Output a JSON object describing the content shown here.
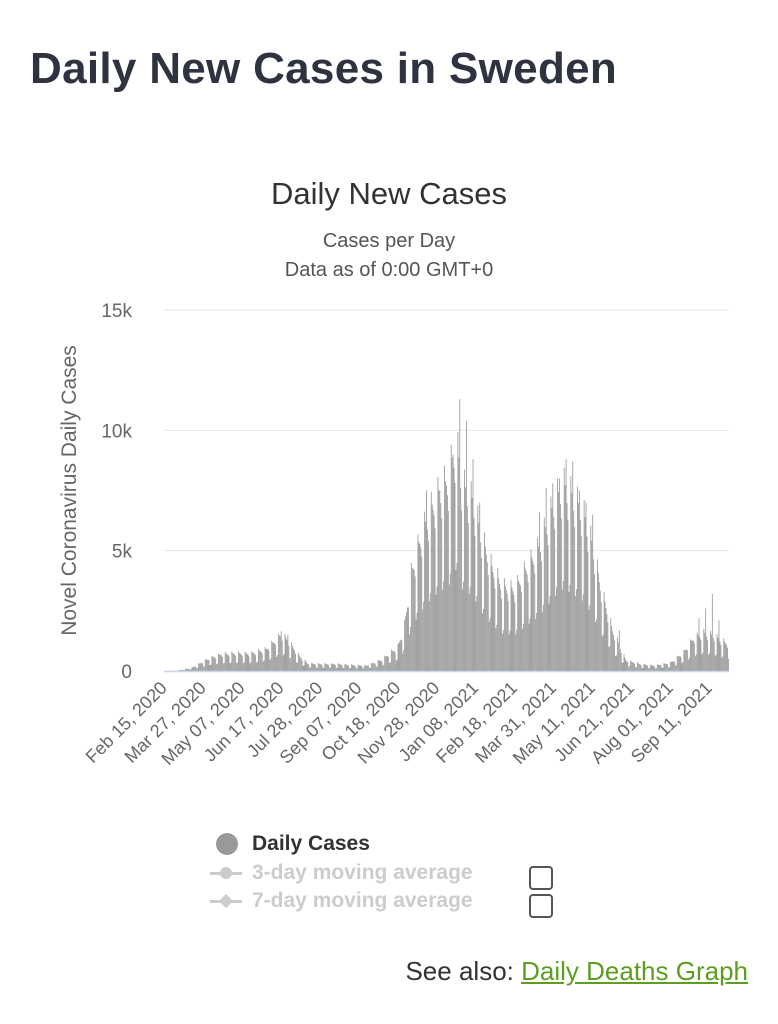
{
  "page": {
    "title": "Daily New Cases in Sweden"
  },
  "chart_data": {
    "type": "bar",
    "title": "Daily New Cases",
    "subtitle": [
      "Cases per Day",
      "Data as of 0:00 GMT+0"
    ],
    "ylabel": "Novel Coronavirus Daily Cases",
    "xlabel": "",
    "ylim": [
      0,
      15000
    ],
    "yticks": [
      0,
      5000,
      10000,
      15000
    ],
    "ytick_labels": [
      "0",
      "5k",
      "10k",
      "15k"
    ],
    "x_start_date": "2020-02-15",
    "x_end_date": "2021-10-01",
    "xtick_labels": [
      "Feb 15, 2020",
      "Mar 27, 2020",
      "May 07, 2020",
      "Jun 17, 2020",
      "Jul 28, 2020",
      "Sep 07, 2020",
      "Oct 18, 2020",
      "Nov 28, 2020",
      "Jan 08, 2021",
      "Feb 18, 2021",
      "Mar 31, 2021",
      "May 11, 2021",
      "Jun 21, 2021",
      "Aug 01, 2021",
      "Sep 11, 2021"
    ],
    "grid": true,
    "legend_position": "bottom",
    "series": [
      {
        "name": "Daily Cases",
        "color": "#999999",
        "daily_profile": [
          [
            "2020-02-15",
            0
          ],
          [
            "2020-03-01",
            20
          ],
          [
            "2020-03-15",
            120
          ],
          [
            "2020-04-01",
            450
          ],
          [
            "2020-04-15",
            620
          ],
          [
            "2020-05-01",
            660
          ],
          [
            "2020-05-15",
            640
          ],
          [
            "2020-06-01",
            800
          ],
          [
            "2020-06-10",
            1100
          ],
          [
            "2020-06-17",
            1350
          ],
          [
            "2020-06-24",
            1150
          ],
          [
            "2020-07-05",
            600
          ],
          [
            "2020-07-15",
            280
          ],
          [
            "2020-08-01",
            260
          ],
          [
            "2020-08-15",
            260
          ],
          [
            "2020-09-01",
            220
          ],
          [
            "2020-09-15",
            200
          ],
          [
            "2020-10-01",
            420
          ],
          [
            "2020-10-18",
            900
          ],
          [
            "2020-10-25",
            1700
          ],
          [
            "2020-11-01",
            3600
          ],
          [
            "2020-11-10",
            4800
          ],
          [
            "2020-11-20",
            5800
          ],
          [
            "2020-12-01",
            6600
          ],
          [
            "2020-12-10",
            7000
          ],
          [
            "2020-12-18",
            8400
          ],
          [
            "2020-12-25",
            6800
          ],
          [
            "2021-01-05",
            6200
          ],
          [
            "2021-01-15",
            4800
          ],
          [
            "2021-01-25",
            3800
          ],
          [
            "2021-02-05",
            3100
          ],
          [
            "2021-02-18",
            3000
          ],
          [
            "2021-03-01",
            3700
          ],
          [
            "2021-03-15",
            4500
          ],
          [
            "2021-04-01",
            6200
          ],
          [
            "2021-04-10",
            6800
          ],
          [
            "2021-04-20",
            6400
          ],
          [
            "2021-05-01",
            5800
          ],
          [
            "2021-05-11",
            4600
          ],
          [
            "2021-05-20",
            3000
          ],
          [
            "2021-06-01",
            1500
          ],
          [
            "2021-06-15",
            400
          ],
          [
            "2021-07-01",
            250
          ],
          [
            "2021-07-15",
            200
          ],
          [
            "2021-08-01",
            300
          ],
          [
            "2021-08-15",
            700
          ],
          [
            "2021-08-25",
            1200
          ],
          [
            "2021-09-05",
            1400
          ],
          [
            "2021-09-15",
            1300
          ],
          [
            "2021-09-25",
            1100
          ],
          [
            "2021-10-01",
            1000
          ]
        ],
        "peaks": [
          [
            "2020-06-17",
            1650
          ],
          [
            "2020-06-24",
            1500
          ],
          [
            "2020-11-17",
            7500
          ],
          [
            "2020-12-01",
            7500
          ],
          [
            "2020-12-08",
            7700
          ],
          [
            "2020-12-15",
            9000
          ],
          [
            "2020-12-22",
            11300
          ],
          [
            "2020-12-29",
            10400
          ],
          [
            "2021-01-05",
            8800
          ],
          [
            "2021-01-12",
            7000
          ],
          [
            "2021-03-16",
            6600
          ],
          [
            "2021-03-23",
            7600
          ],
          [
            "2021-03-30",
            7800
          ],
          [
            "2021-04-06",
            8000
          ],
          [
            "2021-04-13",
            8800
          ],
          [
            "2021-04-20",
            8700
          ],
          [
            "2021-04-27",
            7500
          ],
          [
            "2021-05-04",
            7000
          ],
          [
            "2021-05-11",
            6500
          ],
          [
            "2021-06-08",
            1700
          ],
          [
            "2021-08-31",
            2200
          ],
          [
            "2021-09-07",
            2600
          ],
          [
            "2021-09-14",
            3200
          ],
          [
            "2021-09-21",
            2100
          ]
        ]
      },
      {
        "name": "3-day moving average",
        "color": "#cccccc",
        "visible": false
      },
      {
        "name": "7-day moving average",
        "color": "#cccccc",
        "visible": false
      }
    ]
  },
  "legend": {
    "items": [
      {
        "label": "Daily Cases",
        "active": true
      },
      {
        "label": "3-day moving average",
        "active": false
      },
      {
        "label": "7-day moving average",
        "active": false
      }
    ]
  },
  "footer": {
    "see_also": "See also:",
    "link_text": "Daily Deaths Graph"
  },
  "colors": {
    "bar": "#999999",
    "grid": "#e6e6e6",
    "axis": "#ccd6eb",
    "link": "#5c9e1f"
  }
}
